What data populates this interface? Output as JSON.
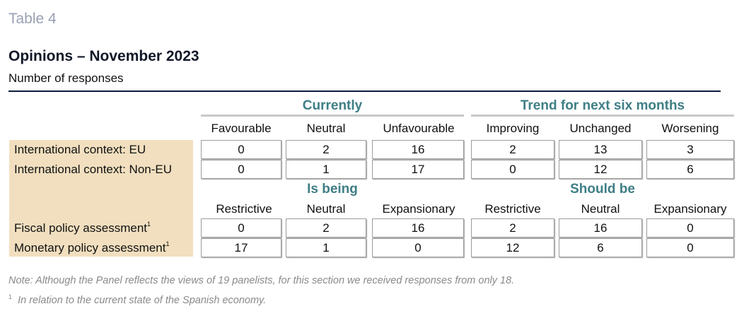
{
  "table_label": "Table 4",
  "title": "Opinions – November 2023",
  "subtitle": "Number of responses",
  "section1": {
    "group_left": "Currently",
    "group_right": "Trend for next six months",
    "columns": [
      "Favourable",
      "Neutral",
      "Unfavourable",
      "Improving",
      "Unchanged",
      "Worsening"
    ],
    "rows": [
      {
        "label": "International context: EU",
        "sup": "",
        "values": [
          "0",
          "2",
          "16",
          "2",
          "13",
          "3"
        ]
      },
      {
        "label": "International context: Non-EU",
        "sup": "",
        "values": [
          "0",
          "1",
          "17",
          "0",
          "12",
          "6"
        ]
      }
    ]
  },
  "section2": {
    "group_left": "Is being",
    "group_right": "Should be",
    "columns": [
      "Restrictive",
      "Neutral",
      "Expansionary",
      "Restrictive",
      "Neutral",
      "Expansionary"
    ],
    "rows": [
      {
        "label": "Fiscal policy assessment",
        "sup": "1",
        "values": [
          "0",
          "2",
          "16",
          "2",
          "16",
          "0"
        ]
      },
      {
        "label": "Monetary policy assessment",
        "sup": "1",
        "values": [
          "17",
          "1",
          "0",
          "12",
          "6",
          "0"
        ]
      }
    ]
  },
  "note": "Note: Although the Panel reflects the views of 19 panelists, for this section we received responses from only 18.",
  "footnote_marker": "1",
  "footnote": "In relation to the current state of the Spanish economy."
}
